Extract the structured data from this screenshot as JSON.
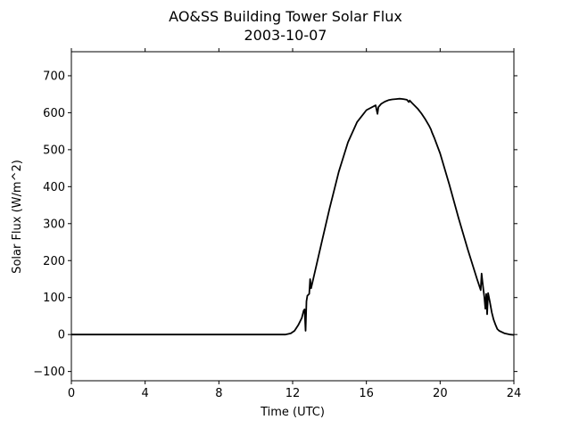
{
  "chart_data": {
    "type": "line",
    "title": "AO&SS Building Tower Solar Flux",
    "subtitle": "2003-10-07",
    "xlabel": "Time (UTC)",
    "ylabel": "Solar Flux (W/m^2)",
    "xlim": [
      0,
      24
    ],
    "ylim": [
      -125,
      765
    ],
    "xticks": [
      0,
      4,
      8,
      12,
      16,
      20,
      24
    ],
    "yticks": [
      -100,
      0,
      100,
      200,
      300,
      400,
      500,
      600,
      700
    ],
    "grid": false,
    "series": [
      {
        "color": "#000000",
        "x": [
          0,
          11.6,
          11.9,
          12.1,
          12.3,
          12.5,
          12.6,
          12.65,
          12.7,
          12.75,
          12.8,
          12.9,
          12.95,
          13.0,
          13.3,
          13.6,
          14.0,
          14.5,
          15.0,
          15.5,
          16.0,
          16.5,
          16.6,
          16.65,
          16.8,
          17.0,
          17.2,
          17.4,
          17.6,
          17.8,
          18.0,
          18.2,
          18.3,
          18.35,
          18.5,
          18.8,
          19.0,
          19.2,
          19.4,
          19.5,
          19.55,
          19.7,
          20.0,
          20.5,
          21.0,
          21.5,
          22.0,
          22.2,
          22.25,
          22.3,
          22.4,
          22.45,
          22.5,
          22.55,
          22.6,
          22.7,
          22.8,
          22.9,
          23.0,
          23.1,
          23.2,
          23.5,
          23.8,
          24.0
        ],
        "y": [
          0,
          0,
          3,
          10,
          25,
          45,
          65,
          68,
          10,
          90,
          105,
          110,
          150,
          125,
          190,
          255,
          340,
          440,
          520,
          575,
          607,
          620,
          597,
          615,
          624,
          630,
          634,
          636,
          637,
          638,
          637,
          635,
          629,
          633,
          625,
          610,
          597,
          582,
          565,
          555,
          548,
          530,
          490,
          405,
          315,
          230,
          150,
          120,
          165,
          140,
          100,
          70,
          110,
          55,
          112,
          88,
          60,
          40,
          27,
          15,
          10,
          3,
          0,
          -1
        ]
      }
    ]
  }
}
